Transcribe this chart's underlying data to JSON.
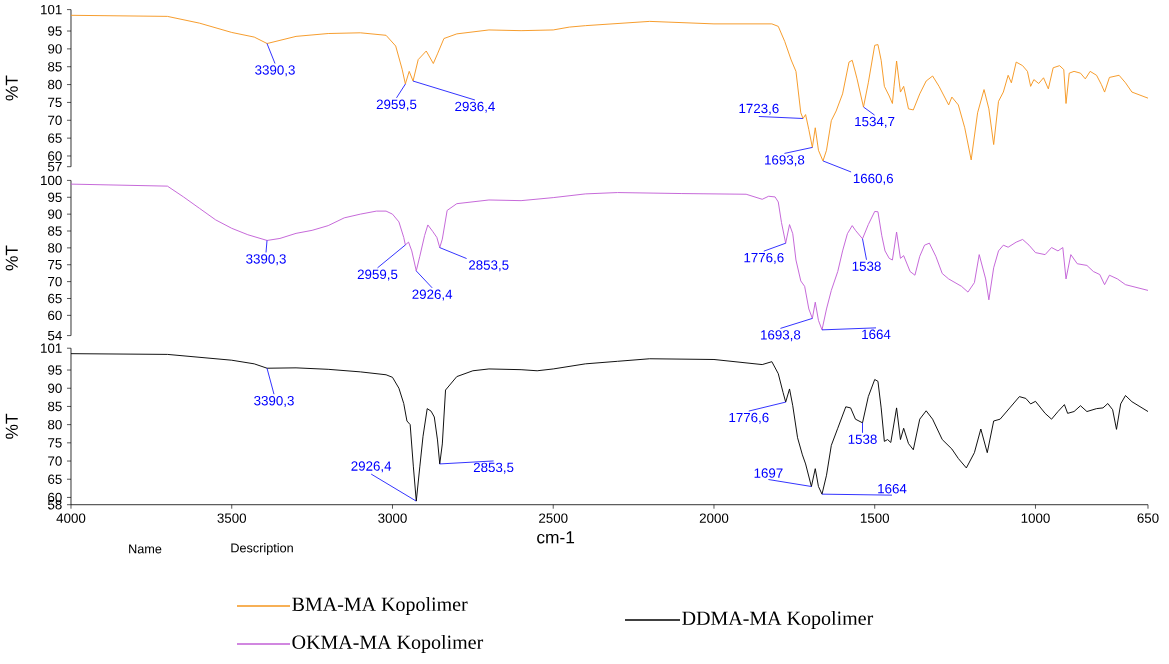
{
  "chart_data": [
    {
      "type": "line",
      "ylabel": "%T",
      "xlim": [
        4000,
        650
      ],
      "ylim": [
        57,
        101
      ],
      "tick_labels": "y",
      "legend": "bottom",
      "xticks": [
        4000,
        3500,
        3000,
        2500,
        2000,
        1500,
        1000,
        650
      ],
      "yticks": [
        57,
        60,
        65,
        70,
        75,
        80,
        85,
        90,
        95,
        101
      ],
      "series": [
        {
          "name": "BMA-MA Kopolimer",
          "color": "#f5961e",
          "x": [
            4000,
            3700,
            3600,
            3500,
            3430,
            3390,
            3300,
            3200,
            3100,
            3020,
            2990,
            2970,
            2960,
            2948,
            2936,
            2920,
            2895,
            2873,
            2860,
            2840,
            2800,
            2700,
            2600,
            2500,
            2450,
            2400,
            2200,
            2000,
            1850,
            1820,
            1800,
            1780,
            1760,
            1745,
            1730,
            1723,
            1715,
            1705,
            1694,
            1685,
            1675,
            1661,
            1650,
            1635,
            1620,
            1600,
            1580,
            1570,
            1555,
            1535,
            1520,
            1500,
            1490,
            1480,
            1470,
            1455,
            1445,
            1440,
            1432,
            1420,
            1410,
            1395,
            1380,
            1360,
            1340,
            1320,
            1300,
            1270,
            1260,
            1240,
            1220,
            1200,
            1180,
            1160,
            1145,
            1130,
            1115,
            1100,
            1085,
            1075,
            1060,
            1040,
            1025,
            1015,
            1005,
            990,
            975,
            960,
            945,
            925,
            912,
            905,
            895,
            880,
            860,
            845,
            830,
            810,
            795,
            785,
            770,
            740,
            720,
            700,
            650
          ],
          "values": [
            99.4,
            99.1,
            97.2,
            94.6,
            93.3,
            91.5,
            93.5,
            94.3,
            94.5,
            93.8,
            90.8,
            84.3,
            80.2,
            83.7,
            81,
            87,
            89.4,
            85.9,
            88.6,
            92.9,
            94.2,
            95.3,
            95.1,
            95.3,
            96.1,
            96.5,
            97.7,
            97,
            97,
            97,
            96.3,
            92.1,
            86.9,
            83.7,
            72.1,
            70.5,
            71.6,
            67.4,
            62.4,
            67.9,
            61.6,
            58.6,
            61.6,
            69.9,
            72.6,
            77.4,
            86.3,
            86.8,
            81.6,
            73.7,
            80.5,
            91,
            91.2,
            86.8,
            79.5,
            76.8,
            74.7,
            79.5,
            86.6,
            77.9,
            79.5,
            73.2,
            72.9,
            77.4,
            81,
            82.4,
            79.5,
            74.3,
            76.5,
            74.3,
            67.9,
            58.9,
            72.1,
            78.6,
            73.2,
            63.2,
            75.3,
            77.9,
            82.6,
            80.5,
            86.3,
            85.3,
            83.7,
            79.5,
            81.4,
            80.3,
            81.9,
            78.8,
            84.7,
            85.3,
            84.2,
            74.7,
            83.2,
            83.7,
            83.2,
            81.6,
            83.7,
            82.6,
            80,
            77.9,
            82,
            82.6,
            80.5,
            77.9,
            76.2
          ]
        }
      ],
      "annotations": [
        {
          "text": "3390,3",
          "x": 3390.3,
          "y": 91.5
        },
        {
          "text": "2959,5",
          "x": 2959.5,
          "y": 80.2
        },
        {
          "text": "2936,4",
          "x": 2936.4,
          "y": 81
        },
        {
          "text": "1723,6",
          "x": 1723.6,
          "y": 70.5
        },
        {
          "text": "1693,8",
          "x": 1693.8,
          "y": 62.4
        },
        {
          "text": "1660,6",
          "x": 1660.6,
          "y": 58.6
        },
        {
          "text": "1534,7",
          "x": 1534.7,
          "y": 73.7
        }
      ]
    },
    {
      "type": "line",
      "ylabel": "%T",
      "xlim": [
        4000,
        650
      ],
      "ylim": [
        54,
        100
      ],
      "tick_labels": "y",
      "legend": "bottom",
      "xticks": [
        4000,
        3500,
        3000,
        2500,
        2000,
        1500,
        1000,
        650
      ],
      "yticks": [
        54,
        60,
        65,
        70,
        75,
        80,
        85,
        90,
        95,
        100
      ],
      "series": [
        {
          "name": "OKMA-MA Kopolimer",
          "color": "#c25fd6",
          "x": [
            4000,
            3700,
            3650,
            3600,
            3550,
            3500,
            3450,
            3390,
            3350,
            3300,
            3250,
            3200,
            3150,
            3100,
            3050,
            3020,
            3000,
            2980,
            2965,
            2960,
            2950,
            2940,
            2926,
            2915,
            2900,
            2890,
            2875,
            2862,
            2853,
            2845,
            2830,
            2800,
            2700,
            2600,
            2500,
            2400,
            2300,
            2100,
            1900,
            1850,
            1830,
            1810,
            1800,
            1790,
            1777,
            1765,
            1755,
            1745,
            1730,
            1718,
            1705,
            1694,
            1685,
            1675,
            1664,
            1650,
            1635,
            1615,
            1600,
            1585,
            1570,
            1560,
            1538,
            1520,
            1500,
            1490,
            1478,
            1468,
            1455,
            1445,
            1432,
            1420,
            1410,
            1390,
            1375,
            1360,
            1345,
            1330,
            1310,
            1290,
            1270,
            1250,
            1230,
            1210,
            1190,
            1175,
            1155,
            1145,
            1130,
            1115,
            1100,
            1085,
            1060,
            1040,
            1020,
            1000,
            970,
            950,
            930,
            915,
            905,
            890,
            870,
            840,
            820,
            800,
            785,
            770,
            745,
            720,
            650
          ],
          "values": [
            98.9,
            98.3,
            95.1,
            91.7,
            88.3,
            85.8,
            83.9,
            82.2,
            82.8,
            84.3,
            85.2,
            86.6,
            88.9,
            90,
            90.9,
            90.9,
            90,
            87.7,
            83.1,
            80.9,
            81.7,
            79.1,
            73.2,
            77.5,
            83.7,
            86.8,
            84.9,
            83.1,
            80.1,
            82.6,
            91.1,
            93.1,
            94.2,
            94,
            94.9,
            96,
            96.4,
            96.1,
            95.9,
            94.4,
            95.3,
            95.1,
            93.6,
            87.5,
            81.4,
            86.9,
            84.2,
            76.4,
            70.2,
            68.6,
            61.9,
            59.1,
            63.9,
            58.5,
            55.7,
            61.9,
            67.4,
            73,
            79.1,
            84.2,
            86.6,
            85.2,
            82.7,
            86.9,
            90.8,
            90.7,
            83.6,
            79.1,
            76.9,
            76.4,
            84.7,
            76.9,
            77.7,
            73,
            71.9,
            77.5,
            80.8,
            81.4,
            77.5,
            72.4,
            70.8,
            69.7,
            68.6,
            66.9,
            69.7,
            78,
            70.8,
            64.6,
            74.1,
            79.1,
            80.8,
            80.2,
            81.7,
            82.5,
            80.8,
            78.6,
            78,
            80.1,
            79.1,
            80.1,
            70.8,
            78,
            75.3,
            74.8,
            73,
            72.1,
            69.1,
            71.9,
            70.8,
            69.1,
            67.4
          ]
        }
      ],
      "annotations": [
        {
          "text": "3390,3",
          "x": 3390.3,
          "y": 82.2
        },
        {
          "text": "2959,5",
          "x": 2959.5,
          "y": 80.9
        },
        {
          "text": "2926,4",
          "x": 2926.4,
          "y": 73.2
        },
        {
          "text": "2853,5",
          "x": 2853.5,
          "y": 80.1
        },
        {
          "text": "1776,6",
          "x": 1776.6,
          "y": 81.4
        },
        {
          "text": "1538",
          "x": 1538,
          "y": 82.7
        },
        {
          "text": "1693,8",
          "x": 1693.8,
          "y": 59.1
        },
        {
          "text": "1664",
          "x": 1664,
          "y": 55.7
        }
      ]
    },
    {
      "type": "line",
      "ylabel": "%T",
      "xlabel": "cm-1",
      "xlim": [
        4000,
        650
      ],
      "ylim": [
        58,
        101
      ],
      "legend": "bottom",
      "xticks": [
        4000,
        3500,
        3000,
        2500,
        2000,
        1500,
        1000,
        650
      ],
      "yticks": [
        58,
        60,
        65,
        70,
        75,
        80,
        85,
        90,
        95,
        101
      ],
      "series": [
        {
          "name": "DDMA-MA Kopolimer",
          "color": "#000000",
          "x": [
            4000,
            3700,
            3600,
            3500,
            3430,
            3390,
            3300,
            3200,
            3100,
            3020,
            3000,
            2980,
            2965,
            2955,
            2945,
            2935,
            2926,
            2915,
            2905,
            2892,
            2880,
            2870,
            2860,
            2853,
            2845,
            2835,
            2800,
            2750,
            2700,
            2600,
            2550,
            2500,
            2400,
            2300,
            2200,
            2000,
            1850,
            1820,
            1800,
            1785,
            1777,
            1765,
            1755,
            1740,
            1725,
            1715,
            1697,
            1685,
            1675,
            1664,
            1650,
            1635,
            1615,
            1590,
            1575,
            1560,
            1538,
            1520,
            1500,
            1490,
            1480,
            1470,
            1460,
            1450,
            1432,
            1420,
            1410,
            1395,
            1380,
            1360,
            1340,
            1320,
            1290,
            1260,
            1240,
            1215,
            1190,
            1170,
            1150,
            1130,
            1110,
            1080,
            1050,
            1030,
            1015,
            1000,
            970,
            950,
            930,
            910,
            900,
            880,
            860,
            840,
            810,
            790,
            775,
            760,
            748,
            735,
            720,
            700,
            650
          ],
          "values": [
            99.5,
            99.3,
            98.5,
            97.7,
            96.7,
            95.5,
            95.6,
            95.2,
            94.5,
            93.7,
            93,
            90,
            85.8,
            81,
            80,
            68.4,
            59,
            68.4,
            76.8,
            84.4,
            83.7,
            82.1,
            75.8,
            69.2,
            74.7,
            89.5,
            93.2,
            94.8,
            95.3,
            95.1,
            94.8,
            95.3,
            96.7,
            97.4,
            98.1,
            97.9,
            96.5,
            97.3,
            94,
            88.8,
            86.2,
            89.8,
            85.2,
            76.4,
            71.7,
            69.2,
            63,
            67.9,
            63,
            60.9,
            66.1,
            74.3,
            79,
            84.9,
            84.6,
            81.5,
            80.5,
            87.7,
            92.4,
            91.9,
            84.6,
            75.4,
            75.9,
            75.1,
            84.6,
            75.9,
            79,
            74.8,
            73.1,
            81.5,
            83.8,
            81.5,
            75.9,
            73.3,
            70.7,
            68.1,
            72.3,
            78.8,
            72.3,
            81,
            81.5,
            84.6,
            87.7,
            87.2,
            85.7,
            86.4,
            83.1,
            81.5,
            83.6,
            85.5,
            83.1,
            83.6,
            85.2,
            83.6,
            84.4,
            84.6,
            85.8,
            84.1,
            78.7,
            85.7,
            88,
            86.3,
            83.6
          ]
        }
      ],
      "annotations": [
        {
          "text": "3390,3",
          "x": 3390.3,
          "y": 95.5
        },
        {
          "text": "2926,4",
          "x": 2926.4,
          "y": 59
        },
        {
          "text": "2853,5",
          "x": 2853.5,
          "y": 69.2
        },
        {
          "text": "1776,6",
          "x": 1776.6,
          "y": 86.2
        },
        {
          "text": "1538",
          "x": 1538,
          "y": 80.5
        },
        {
          "text": "1697",
          "x": 1697,
          "y": 63
        },
        {
          "text": "1664",
          "x": 1664,
          "y": 60.9
        },
        "Name",
        "Description"
      ]
    }
  ]
}
